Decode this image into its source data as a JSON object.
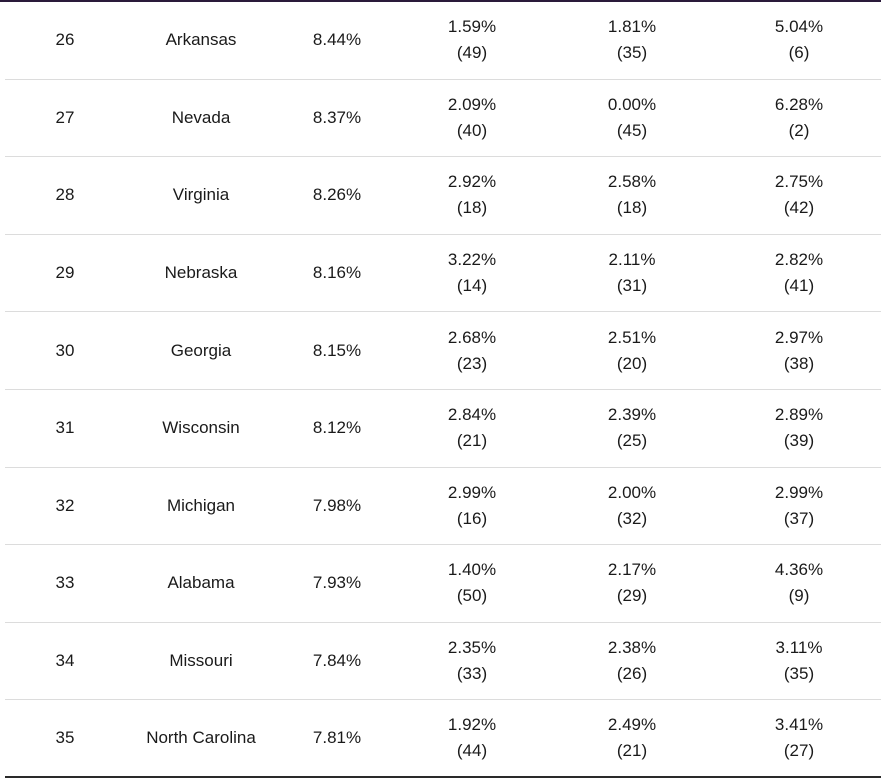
{
  "table": {
    "rows": [
      {
        "rank": "26",
        "state": "Arkansas",
        "total": "8.44%",
        "m1_pct": "1.59%",
        "m1_rank": "(49)",
        "m2_pct": "1.81%",
        "m2_rank": "(35)",
        "m3_pct": "5.04%",
        "m3_rank": "(6)"
      },
      {
        "rank": "27",
        "state": "Nevada",
        "total": "8.37%",
        "m1_pct": "2.09%",
        "m1_rank": "(40)",
        "m2_pct": "0.00%",
        "m2_rank": "(45)",
        "m3_pct": "6.28%",
        "m3_rank": "(2)"
      },
      {
        "rank": "28",
        "state": "Virginia",
        "total": "8.26%",
        "m1_pct": "2.92%",
        "m1_rank": "(18)",
        "m2_pct": "2.58%",
        "m2_rank": "(18)",
        "m3_pct": "2.75%",
        "m3_rank": "(42)"
      },
      {
        "rank": "29",
        "state": "Nebraska",
        "total": "8.16%",
        "m1_pct": "3.22%",
        "m1_rank": "(14)",
        "m2_pct": "2.11%",
        "m2_rank": "(31)",
        "m3_pct": "2.82%",
        "m3_rank": "(41)"
      },
      {
        "rank": "30",
        "state": "Georgia",
        "total": "8.15%",
        "m1_pct": "2.68%",
        "m1_rank": "(23)",
        "m2_pct": "2.51%",
        "m2_rank": "(20)",
        "m3_pct": "2.97%",
        "m3_rank": "(38)"
      },
      {
        "rank": "31",
        "state": "Wisconsin",
        "total": "8.12%",
        "m1_pct": "2.84%",
        "m1_rank": "(21)",
        "m2_pct": "2.39%",
        "m2_rank": "(25)",
        "m3_pct": "2.89%",
        "m3_rank": "(39)"
      },
      {
        "rank": "32",
        "state": "Michigan",
        "total": "7.98%",
        "m1_pct": "2.99%",
        "m1_rank": "(16)",
        "m2_pct": "2.00%",
        "m2_rank": "(32)",
        "m3_pct": "2.99%",
        "m3_rank": "(37)"
      },
      {
        "rank": "33",
        "state": "Alabama",
        "total": "7.93%",
        "m1_pct": "1.40%",
        "m1_rank": "(50)",
        "m2_pct": "2.17%",
        "m2_rank": "(29)",
        "m3_pct": "4.36%",
        "m3_rank": "(9)"
      },
      {
        "rank": "34",
        "state": "Missouri",
        "total": "7.84%",
        "m1_pct": "2.35%",
        "m1_rank": "(33)",
        "m2_pct": "2.38%",
        "m2_rank": "(26)",
        "m3_pct": "3.11%",
        "m3_rank": "(35)"
      },
      {
        "rank": "35",
        "state": "North Carolina",
        "total": "7.81%",
        "m1_pct": "1.92%",
        "m1_rank": "(44)",
        "m2_pct": "2.49%",
        "m2_rank": "(21)",
        "m3_pct": "3.41%",
        "m3_rank": "(27)"
      }
    ]
  }
}
